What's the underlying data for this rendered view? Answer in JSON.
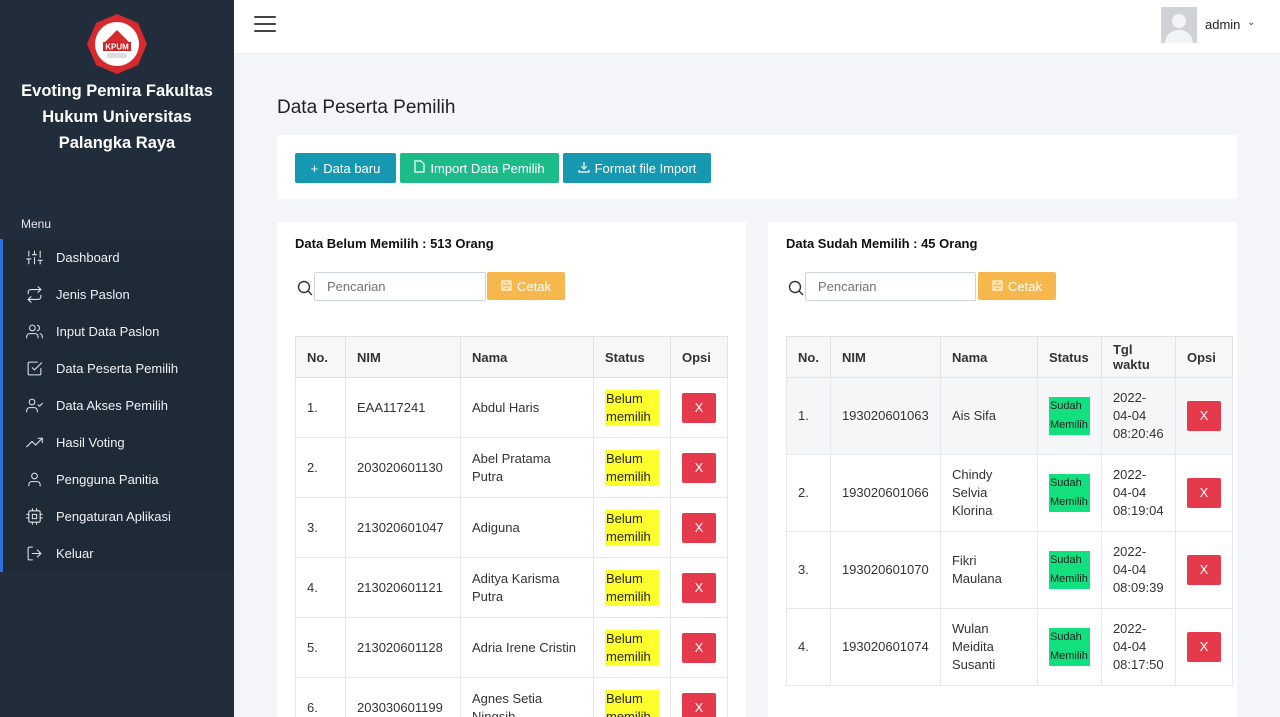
{
  "sidebar": {
    "logo_text": "KPUM",
    "brand": "Evoting Pemira Fakultas Hukum Universitas Palangka Raya",
    "menu_heading": "Menu",
    "items": [
      {
        "label": "Dashboard",
        "icon": "sliders-icon"
      },
      {
        "label": "Jenis Paslon",
        "icon": "repeat-icon"
      },
      {
        "label": "Input Data Paslon",
        "icon": "users-icon"
      },
      {
        "label": "Data Peserta Pemilih",
        "icon": "check-square-icon"
      },
      {
        "label": "Data Akses Pemilih",
        "icon": "user-check-icon"
      },
      {
        "label": "Hasil Voting",
        "icon": "trending-up-icon"
      },
      {
        "label": "Pengguna Panitia",
        "icon": "user-icon"
      },
      {
        "label": "Pengaturan Aplikasi",
        "icon": "cpu-icon"
      },
      {
        "label": "Keluar",
        "icon": "log-out-icon"
      }
    ]
  },
  "header": {
    "user": "admin"
  },
  "page": {
    "title": "Data Peserta Pemilih"
  },
  "actions": {
    "new": "Data baru",
    "import": "Import Data Pemilih",
    "format": "Format file Import"
  },
  "left": {
    "title": "Data Belum Memilih : 513 Orang",
    "search_placeholder": "Pencarian",
    "print": "Cetak",
    "columns": [
      "No.",
      "NIM",
      "Nama",
      "Status",
      "Opsi"
    ],
    "rows": [
      {
        "no": "1.",
        "nim": "EAA117241",
        "nama": "Abdul Haris",
        "status": "Belum memilih",
        "opsi": "X"
      },
      {
        "no": "2.",
        "nim": "203020601130",
        "nama": "Abel Pratama Putra",
        "status": "Belum memilih",
        "opsi": "X"
      },
      {
        "no": "3.",
        "nim": "213020601047",
        "nama": "Adiguna",
        "status": "Belum memilih",
        "opsi": "X"
      },
      {
        "no": "4.",
        "nim": "213020601121",
        "nama": "Aditya Karisma Putra",
        "status": "Belum memilih",
        "opsi": "X"
      },
      {
        "no": "5.",
        "nim": "213020601128",
        "nama": "Adria Irene Cristin",
        "status": "Belum memilih",
        "opsi": "X"
      },
      {
        "no": "6.",
        "nim": "203030601199",
        "nama": "Agnes Setia Ningsih",
        "status": "Belum memilih",
        "opsi": "X"
      }
    ]
  },
  "right": {
    "title": "Data Sudah Memilih : 45 Orang",
    "search_placeholder": "Pencarian",
    "print": "Cetak",
    "columns": [
      "No.",
      "NIM",
      "Nama",
      "Status",
      "Tgl waktu",
      "Opsi"
    ],
    "rows": [
      {
        "no": "1.",
        "nim": "193020601063",
        "nama": "Ais Sifa",
        "status": "Sudah Memilih",
        "waktu": "2022-04-04 08:20:46",
        "opsi": "X"
      },
      {
        "no": "2.",
        "nim": "193020601066",
        "nama": "Chindy Selvia Klorina",
        "status": "Sudah Memilih",
        "waktu": "2022-04-04 08:19:04",
        "opsi": "X"
      },
      {
        "no": "3.",
        "nim": "193020601070",
        "nama": "Fikri Maulana",
        "status": "Sudah Memilih",
        "waktu": "2022-04-04 08:09:39",
        "opsi": "X"
      },
      {
        "no": "4.",
        "nim": "193020601074",
        "nama": "Wulan Meidita Susanti",
        "status": "Sudah Memilih",
        "waktu": "2022-04-04 08:17:50",
        "opsi": "X"
      }
    ]
  }
}
